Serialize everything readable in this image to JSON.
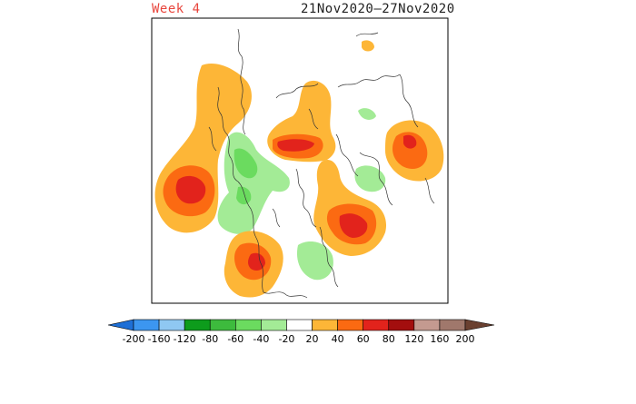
{
  "header": {
    "week_label": "Week 4",
    "date_range": "21Nov2020–27Nov2020"
  },
  "colorbar": {
    "bins": [
      {
        "color": "#1e6fd6"
      },
      {
        "color": "#3c96f0"
      },
      {
        "color": "#8fc8f2"
      },
      {
        "color": "#0d9c1c"
      },
      {
        "color": "#3dbb3d"
      },
      {
        "color": "#6bdb5f"
      },
      {
        "color": "#a3eb96"
      },
      {
        "color": "#ffffff"
      },
      {
        "color": "#fdb637"
      },
      {
        "color": "#fb6a12"
      },
      {
        "color": "#e2231c"
      },
      {
        "color": "#a30e0e"
      },
      {
        "color": "#c49a90"
      },
      {
        "color": "#a0786c"
      },
      {
        "color": "#6a4030"
      }
    ],
    "labels": [
      "-200",
      "-160",
      "-120",
      "-80",
      "-60",
      "-40",
      "-20",
      "20",
      "40",
      "60",
      "80",
      "120",
      "160",
      "200"
    ]
  },
  "map": {
    "colors": {
      "pos40": "#fdb637",
      "pos60": "#fb6a12",
      "pos80": "#e2231c",
      "neg40": "#a3eb96",
      "neg60": "#6bdb5f",
      "frame": "#000000",
      "coast": "#333333"
    }
  }
}
